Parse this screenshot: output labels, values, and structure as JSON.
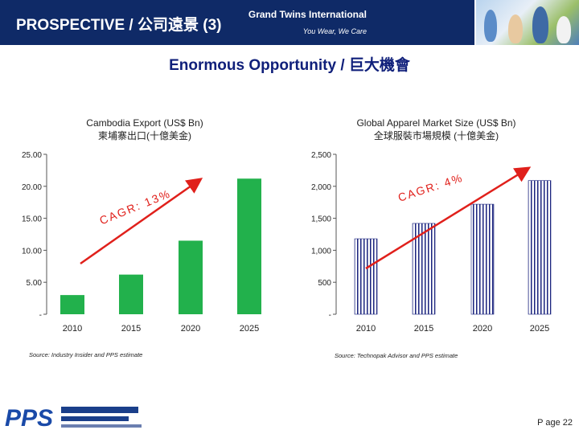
{
  "header": {
    "title": "PROSPECTIVE  / 公司遠景 (3)",
    "brand": "Grand Twins International",
    "tagline": "You Wear, We Care"
  },
  "main_title": "Enormous Opportunity / 巨大機會",
  "charts": {
    "left": {
      "title_en": "Cambodia Export (US$ Bn)",
      "title_zh": "柬埔寨出口(十億美金)",
      "cagr_label": "CAGR: 13%",
      "source": "Source: Industry Insider and PPS estimate",
      "yticks": [
        "25.00",
        "20.00",
        "15.00",
        "10.00",
        "5.00",
        "-"
      ]
    },
    "right": {
      "title_en": "Global Apparel Market Size (US$ Bn)",
      "title_zh": "全球服裝市場規模 (十億美金)",
      "cagr_label": "CAGR: 4%",
      "source": "Source: Technopak Advisor and PPS estimate",
      "yticks": [
        "2,500",
        "2,000",
        "1,500",
        "1,000",
        "500",
        "-"
      ]
    }
  },
  "chart_data": [
    {
      "type": "bar",
      "title": "Cambodia Export (US$ Bn)",
      "categories": [
        "2010",
        "2015",
        "2020",
        "2025"
      ],
      "values": [
        3.0,
        6.2,
        11.5,
        21.2
      ],
      "ylim": [
        0,
        25
      ],
      "color": "#22b14c",
      "annotation": "CAGR: 13%"
    },
    {
      "type": "bar",
      "title": "Global Apparel Market Size (US$ Bn)",
      "categories": [
        "2010",
        "2015",
        "2020",
        "2025"
      ],
      "values": [
        1180,
        1420,
        1720,
        2090
      ],
      "ylim": [
        0,
        2500
      ],
      "color": "#1a237e",
      "annotation": "CAGR: 4%"
    }
  ],
  "footer": {
    "logo_text": "PPS",
    "page_label": "P age 22"
  },
  "colors": {
    "header_bg": "#0f2a67",
    "title": "#0f1f7a",
    "cagr_arrow": "#e0201b",
    "green_bar": "#22b14c"
  }
}
